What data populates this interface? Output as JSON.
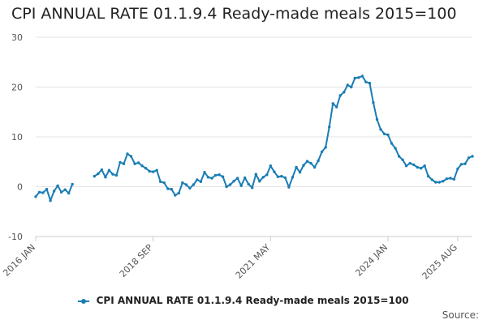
{
  "chart_data": {
    "type": "line",
    "title": "CPI ANNUAL RATE 01.1.9.4 Ready-made meals 2015=100",
    "xlabel": "",
    "ylabel": "",
    "ylim": [
      -10,
      30
    ],
    "yticks": [
      "30",
      "20",
      "10",
      "0",
      "-10"
    ],
    "xticks": [
      "2016 JAN",
      "2018 SEP",
      "2021 MAY",
      "2024 JAN",
      "2025 AUG"
    ],
    "grid": true,
    "legend_position": "bottom",
    "series": [
      {
        "name": "CPI ANNUAL RATE 01.1.9.4 Ready-made meals 2015=100",
        "color": "#1b7db5",
        "segments": [
          [
            -2.0,
            -1.1,
            -1.2,
            -0.5,
            -2.8,
            -0.9,
            0.2,
            -1.1,
            -0.6,
            -1.3,
            0.5
          ],
          [
            2.1,
            2.6,
            3.4,
            1.9,
            3.3,
            2.5,
            2.3,
            4.9,
            4.6,
            6.6,
            6.1,
            4.6,
            4.8,
            4.2,
            3.7,
            3.1,
            3.0,
            3.3,
            1.0,
            0.8,
            -0.4,
            -0.5,
            -1.7,
            -1.3,
            0.8,
            0.4,
            -0.3,
            0.4,
            1.4,
            1.0,
            2.9,
            1.9,
            1.7,
            2.3,
            2.4,
            2.0,
            0.0,
            0.4,
            1.1,
            1.7,
            0.2,
            1.8,
            0.5,
            -0.2,
            2.5,
            1.1,
            1.9,
            2.4,
            4.2,
            3.0,
            2.0,
            2.1,
            1.8,
            -0.1,
            1.9,
            3.9,
            2.9,
            4.3,
            5.1,
            4.7,
            3.9,
            5.2,
            7.0,
            7.9,
            12.0,
            16.7,
            16.0,
            18.3,
            19.0,
            20.4,
            20.0,
            21.8,
            21.9,
            22.2,
            21.0,
            20.8,
            16.9,
            13.5,
            11.5,
            10.6,
            10.4,
            8.7,
            7.7,
            6.1,
            5.4,
            4.2,
            4.7,
            4.4,
            3.9,
            3.7,
            4.2,
            2.1,
            1.4,
            0.9,
            0.9,
            1.1,
            1.6,
            1.7,
            1.5,
            3.6,
            4.5,
            4.6,
            5.8,
            6.1
          ]
        ]
      }
    ]
  },
  "legend": {
    "label": "CPI ANNUAL RATE 01.1.9.4 Ready-made meals 2015=100"
  },
  "source": {
    "label": "Source:"
  }
}
